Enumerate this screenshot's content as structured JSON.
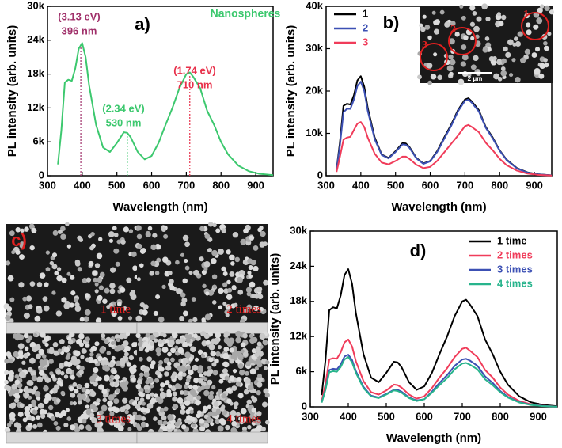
{
  "chart_data": [
    {
      "type": "line",
      "panel_label": "a)",
      "x_label": "Wavelength (nm)",
      "y_label": "PL intensity (arb. units)",
      "xlim": [
        300,
        950
      ],
      "xticks": [
        300,
        400,
        500,
        600,
        700,
        800,
        900
      ],
      "ylim": [
        0,
        30000
      ],
      "yticks": [
        0,
        {
          "value": 6000,
          "label": "6k"
        },
        {
          "value": 12000,
          "label": "12k"
        },
        {
          "value": 18000,
          "label": "18k"
        },
        {
          "value": 24000,
          "label": "24k"
        },
        {
          "value": 30000,
          "label": "30k"
        }
      ],
      "x": [
        330,
        340,
        350,
        360,
        370,
        380,
        390,
        400,
        410,
        420,
        440,
        460,
        480,
        500,
        520,
        530,
        540,
        560,
        580,
        600,
        620,
        640,
        660,
        680,
        700,
        710,
        720,
        740,
        760,
        780,
        800,
        820,
        850,
        880,
        910,
        950
      ],
      "series": [
        {
          "name": "Nanospheres",
          "color": "#3cc86e",
          "values": [
            2000,
            8000,
            16500,
            17000,
            16800,
            19000,
            22500,
            23500,
            21000,
            16000,
            9000,
            5000,
            4200,
            5800,
            7700,
            7600,
            6800,
            4200,
            2900,
            3500,
            5800,
            9000,
            12000,
            15500,
            18000,
            18300,
            17500,
            15500,
            11500,
            9000,
            6000,
            3800,
            1800,
            800,
            350,
            100
          ]
        }
      ],
      "vlines": [
        {
          "x": 396,
          "color": "#a0306a"
        },
        {
          "x": 530,
          "color": "#3cc86e"
        },
        {
          "x": 710,
          "color": "#e8304a"
        }
      ],
      "annotations": [
        {
          "text": "(3.13 eV)",
          "color": "#a0306a"
        },
        {
          "text": "396 nm",
          "color": "#a0306a"
        },
        {
          "text": "(2.34 eV)",
          "color": "#3cc86e"
        },
        {
          "text": "530 nm",
          "color": "#3cc86e"
        },
        {
          "text": "(1.74 eV)",
          "color": "#e8304a"
        },
        {
          "text": "710 nm",
          "color": "#e8304a"
        }
      ]
    },
    {
      "type": "line",
      "panel_label": "b)",
      "x_label": "Wavelength (nm)",
      "y_label": "PL intensity (arb. units)",
      "xlim": [
        300,
        950
      ],
      "xticks": [
        300,
        400,
        500,
        600,
        700,
        800,
        900
      ],
      "ylim": [
        0,
        40000
      ],
      "yticks": [
        0,
        {
          "value": 10000,
          "label": "10k"
        },
        {
          "value": 20000,
          "label": "20k"
        },
        {
          "value": 30000,
          "label": "30k"
        },
        {
          "value": 40000,
          "label": "40k"
        }
      ],
      "legend": "upper left",
      "x": [
        330,
        340,
        350,
        360,
        370,
        380,
        390,
        400,
        410,
        420,
        440,
        460,
        480,
        500,
        520,
        530,
        540,
        560,
        580,
        600,
        620,
        640,
        660,
        680,
        700,
        710,
        720,
        740,
        760,
        780,
        800,
        820,
        850,
        880,
        910,
        950
      ],
      "series": [
        {
          "name": "1",
          "color": "#000000",
          "values": [
            1500,
            8000,
            16500,
            17000,
            16800,
            19000,
            22500,
            23500,
            21000,
            16000,
            9000,
            5000,
            4200,
            5800,
            7700,
            7600,
            6800,
            4200,
            2900,
            3500,
            5800,
            9000,
            12000,
            15500,
            18000,
            18300,
            17500,
            15500,
            11500,
            9000,
            6000,
            3800,
            1800,
            800,
            350,
            100
          ]
        },
        {
          "name": "2",
          "color": "#3c50b4",
          "values": [
            1400,
            7200,
            15000,
            15800,
            15800,
            18000,
            21200,
            22200,
            20000,
            15300,
            8600,
            4900,
            4100,
            5600,
            7400,
            7300,
            6600,
            4100,
            2800,
            3400,
            5600,
            8700,
            11700,
            15200,
            17700,
            18000,
            17200,
            15200,
            11300,
            8800,
            5900,
            3700,
            1700,
            750,
            330,
            100
          ]
        },
        {
          "name": "3",
          "color": "#f03c5a",
          "values": [
            900,
            4500,
            8500,
            9000,
            9200,
            10800,
            12300,
            12700,
            11500,
            9000,
            5200,
            3100,
            2700,
            3500,
            4500,
            4500,
            4000,
            2600,
            1800,
            2100,
            3500,
            5500,
            7500,
            9500,
            11700,
            12000,
            11500,
            10300,
            7800,
            6000,
            4000,
            2500,
            1200,
            500,
            200,
            50
          ]
        }
      ],
      "inset": {
        "labels": [
          "1",
          "2",
          "3"
        ],
        "scale_bar": "2 μm"
      }
    },
    {
      "type": "image",
      "panel_label": "c)",
      "labels": [
        "1 time",
        "2 times",
        "3 times",
        "4 times"
      ]
    },
    {
      "type": "line",
      "panel_label": "d)",
      "x_label": "Wavelength (nm)",
      "y_label": "PL intensity (arb. units)",
      "xlim": [
        300,
        950
      ],
      "xticks": [
        300,
        400,
        500,
        600,
        700,
        800,
        900
      ],
      "ylim": [
        0,
        30000
      ],
      "yticks": [
        0,
        {
          "value": 6000,
          "label": "6k"
        },
        {
          "value": 12000,
          "label": "12k"
        },
        {
          "value": 18000,
          "label": "18k"
        },
        {
          "value": 24000,
          "label": "24k"
        },
        {
          "value": 30000,
          "label": "30k"
        }
      ],
      "legend": "upper right",
      "x": [
        330,
        340,
        350,
        360,
        370,
        380,
        390,
        400,
        410,
        420,
        440,
        460,
        480,
        500,
        520,
        530,
        540,
        560,
        580,
        600,
        620,
        640,
        660,
        680,
        700,
        710,
        720,
        740,
        760,
        780,
        800,
        820,
        850,
        880,
        910,
        950
      ],
      "series": [
        {
          "name": "1 time",
          "color": "#000000",
          "values": [
            2000,
            8000,
            16500,
            17000,
            16800,
            19000,
            22500,
            23500,
            21000,
            16000,
            9000,
            5000,
            4200,
            5800,
            7700,
            7600,
            6800,
            4200,
            2900,
            3500,
            5800,
            9000,
            12000,
            15500,
            18000,
            18300,
            17500,
            15500,
            11500,
            9000,
            6000,
            3800,
            1800,
            800,
            350,
            100
          ]
        },
        {
          "name": "2 times",
          "color": "#f03c5a",
          "values": [
            1000,
            3900,
            8100,
            8300,
            8200,
            9300,
            11000,
            11500,
            10300,
            7800,
            4400,
            2500,
            2100,
            2800,
            3800,
            3700,
            3300,
            2100,
            1400,
            1800,
            3200,
            5000,
            6600,
            8500,
            9900,
            10100,
            9600,
            8500,
            6300,
            5000,
            3300,
            2100,
            1000,
            440,
            190,
            60
          ]
        },
        {
          "name": "3 times",
          "color": "#3c50b4",
          "values": [
            760,
            3000,
            6300,
            6500,
            6400,
            7200,
            8600,
            8900,
            8000,
            6100,
            3400,
            1900,
            1600,
            2200,
            2900,
            2900,
            2600,
            1600,
            1100,
            1300,
            2600,
            4100,
            5400,
            7000,
            8100,
            8200,
            7900,
            7000,
            5200,
            4100,
            2700,
            1700,
            800,
            360,
            160,
            45
          ]
        },
        {
          "name": "4 times",
          "color": "#28b48c",
          "values": [
            720,
            2900,
            5900,
            6100,
            6000,
            6800,
            8100,
            8500,
            7600,
            5800,
            3200,
            1800,
            1500,
            2100,
            2800,
            2700,
            2400,
            1500,
            1000,
            1300,
            2400,
            3700,
            4900,
            6400,
            7400,
            7500,
            7200,
            6400,
            4700,
            3700,
            2500,
            1600,
            740,
            330,
            140,
            40
          ]
        }
      ]
    }
  ]
}
